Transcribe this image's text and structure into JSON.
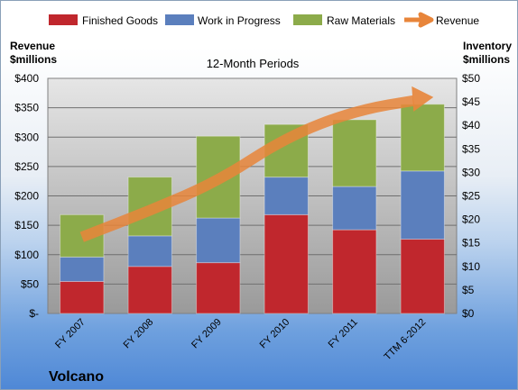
{
  "chart_data": {
    "type": "bar",
    "stacked": true,
    "title": "12-Month Periods",
    "categories": [
      "FY 2007",
      "FY 2008",
      "FY 2009",
      "FY 2010",
      "FY 2011",
      "TTM 6-2012"
    ],
    "ylabel_left": "Revenue\n$millions",
    "ylabel_right": "Inventory\n$millions",
    "ylim_left": [
      0,
      400
    ],
    "ylim_right": [
      0,
      50
    ],
    "yticks_left": [
      "$-",
      "$50",
      "$100",
      "$150",
      "$200",
      "$250",
      "$300",
      "$350",
      "$400"
    ],
    "yticks_right": [
      "$0",
      "$5",
      "$10",
      "$15",
      "$20",
      "$25",
      "$30",
      "$35",
      "$40",
      "$45",
      "$50"
    ],
    "series": [
      {
        "name": "Finished Goods",
        "axis": "right",
        "color": "#c0272d",
        "values": [
          6.8,
          10.0,
          10.8,
          21.0,
          17.8,
          15.8
        ]
      },
      {
        "name": "Work in Progress",
        "axis": "right",
        "color": "#5b7fbd",
        "values": [
          5.2,
          6.5,
          9.5,
          8.0,
          9.2,
          14.5
        ]
      },
      {
        "name": "Raw Materials",
        "axis": "right",
        "color": "#8cab4a",
        "values": [
          9.0,
          12.5,
          17.4,
          11.2,
          14.2,
          14.2
        ]
      },
      {
        "name": "Revenue",
        "axis": "left",
        "type": "line",
        "color": "#e8853a",
        "values": [
          130,
          175,
          225,
          300,
          345,
          365
        ]
      }
    ],
    "grid": true,
    "legend": "top"
  },
  "company_name": "Volcano"
}
